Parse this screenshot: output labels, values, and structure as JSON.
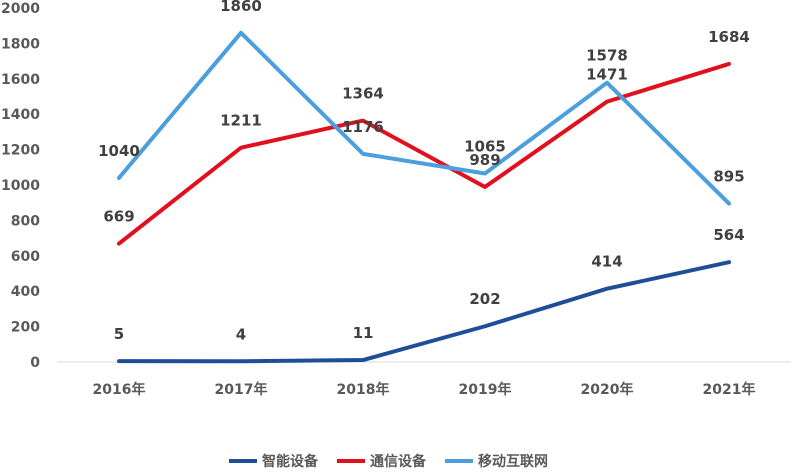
{
  "chart_data": {
    "type": "line",
    "categories": [
      "2016年",
      "2017年",
      "2018年",
      "2019年",
      "2020年",
      "2021年"
    ],
    "series": [
      {
        "name": "智能设备",
        "color": "#1F4E99",
        "values": [
          5,
          4,
          11,
          202,
          414,
          564
        ]
      },
      {
        "name": "通信设备",
        "color": "#E0101E",
        "values": [
          669,
          1211,
          1364,
          989,
          1471,
          1684
        ]
      },
      {
        "name": "移动互联网",
        "color": "#4A9FDC",
        "values": [
          1040,
          1860,
          1176,
          1065,
          1578,
          895
        ]
      }
    ],
    "ylim": [
      0,
      2000
    ],
    "yticks": [
      0,
      200,
      400,
      600,
      800,
      1000,
      1200,
      1400,
      1600,
      1800,
      2000
    ],
    "grid": false,
    "legend": "bottom"
  }
}
